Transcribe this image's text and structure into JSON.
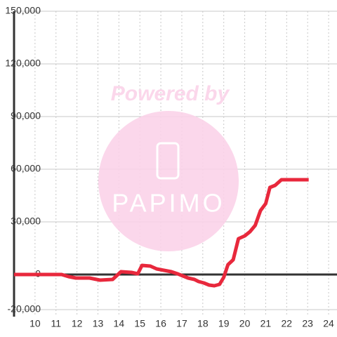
{
  "chart_data": {
    "type": "line",
    "x": [
      9,
      11.27,
      11.6,
      11.95,
      12.6,
      13.1,
      13.7,
      14.1,
      14.6,
      14.9,
      15.1,
      15.5,
      15.8,
      16.5,
      16.8,
      17.05,
      17.3,
      17.6,
      17.8,
      18.05,
      18.3,
      18.55,
      18.8,
      19.0,
      19.2,
      19.45,
      19.7,
      20.0,
      20.25,
      20.5,
      20.75,
      21.0,
      21.2,
      21.45,
      21.75,
      23.05
    ],
    "series": [
      {
        "color": "#e8283c",
        "values": [
          0,
          0,
          -1200,
          -2000,
          -2000,
          -3200,
          -2800,
          1600,
          1200,
          400,
          5200,
          4800,
          3200,
          1600,
          400,
          -800,
          -2000,
          -2800,
          -4000,
          -4800,
          -6000,
          -6400,
          -5600,
          -1600,
          5600,
          8400,
          20400,
          22000,
          24400,
          28000,
          36400,
          40400,
          49600,
          50800,
          54000,
          54000
        ]
      }
    ],
    "xlim": [
      9,
      24.4
    ],
    "xticks": [
      10,
      11,
      12,
      13,
      14,
      15,
      16,
      17,
      18,
      19,
      20,
      21,
      22,
      23,
      24
    ],
    "ylim": [
      -24000,
      150000
    ],
    "yticks": [
      {
        "value": -20000,
        "label": "-20,000"
      },
      0,
      {
        "value": 30000,
        "label": "30,000"
      },
      {
        "value": 60000,
        "label": "60,000"
      },
      {
        "value": 90000,
        "label": "90,000"
      },
      {
        "value": 120000,
        "label": "120,000"
      },
      {
        "value": 150000,
        "label": "150,000"
      }
    ],
    "grid": true,
    "watermark": {
      "text": "Powered by",
      "logo": "PAPIMO"
    }
  }
}
